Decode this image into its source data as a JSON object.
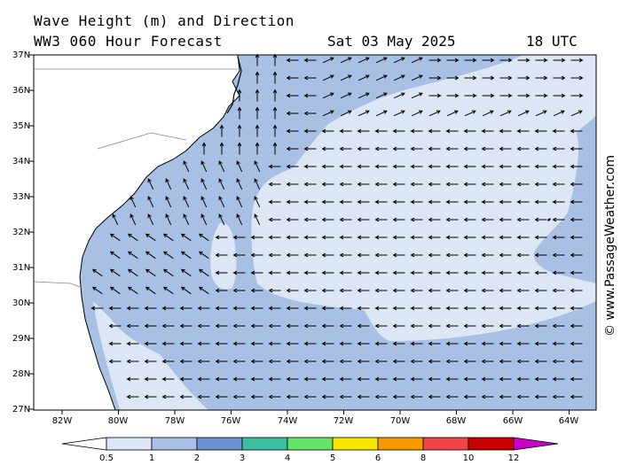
{
  "header": {
    "title_line1": "Wave Height (m) and Direction",
    "title_line2": "WW3 060 Hour Forecast",
    "date": "Sat 03 May 2025",
    "time": "18 UTC"
  },
  "credit": "© www.PassageWeather.com",
  "axes": {
    "lat_labels": [
      "37N",
      "36N",
      "35N",
      "34N",
      "33N",
      "32N",
      "31N",
      "30N",
      "29N",
      "28N",
      "27N"
    ],
    "lon_labels": [
      "82W",
      "80W",
      "78W",
      "76W",
      "74W",
      "72W",
      "70W",
      "68W",
      "66W",
      "64W"
    ]
  },
  "legend": {
    "ticks": [
      "0.5",
      "1",
      "2",
      "3",
      "4",
      "5",
      "6",
      "8",
      "10",
      "12"
    ],
    "colors": [
      "#dde6f5",
      "#a8c0e3",
      "#6b93d0",
      "#3cbfa0",
      "#66e466",
      "#f7e600",
      "#f79a00",
      "#f24444",
      "#c80000",
      "#c800c8"
    ]
  },
  "colors": {
    "band_light": "#dde6f5",
    "band_medium": "#a8c0e3",
    "land": "#ffffff",
    "arrow": "#000000"
  }
}
